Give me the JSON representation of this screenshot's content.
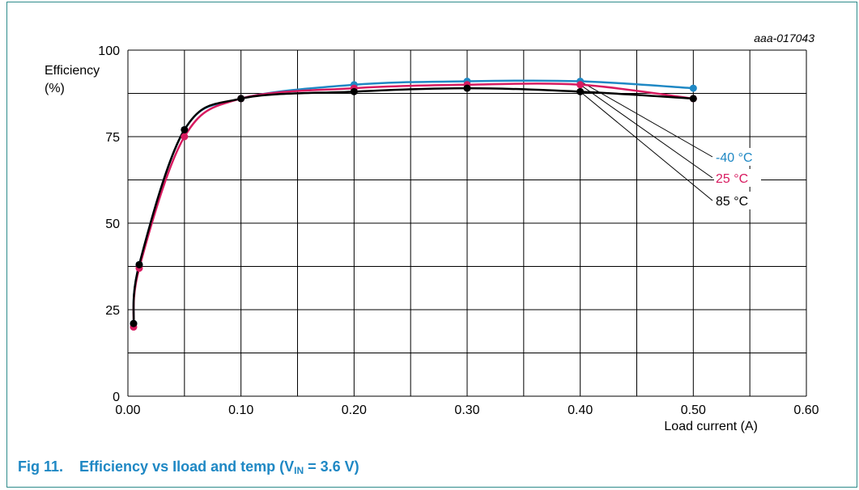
{
  "caption": {
    "fig_label": "Fig 11.",
    "title_main": "Efficiency vs Iload and temp (V",
    "title_sub": "IN",
    "title_tail": " = 3.6 V)"
  },
  "chart_data": {
    "type": "line",
    "doc_id": "aaa-017043",
    "xlabel": "Load current (A)",
    "ylabel_line1": "Efficiency",
    "ylabel_line2": "(%)",
    "xlim": [
      0,
      0.6
    ],
    "ylim": [
      0,
      100
    ],
    "x_ticks": [
      0,
      0.1,
      0.2,
      0.3,
      0.4,
      0.5,
      0.6
    ],
    "x_tick_labels": [
      "0.00",
      "0.10",
      "0.20",
      "0.30",
      "0.40",
      "0.50",
      "0.60"
    ],
    "y_ticks": [
      0,
      25,
      50,
      75,
      100
    ],
    "y_tick_labels": [
      "0",
      "25",
      "50",
      "75",
      "100"
    ],
    "grid": true,
    "series": [
      {
        "name": "-40 °C",
        "color": "#1f88c4",
        "x": [
          0.005,
          0.01,
          0.05,
          0.1,
          0.2,
          0.3,
          0.4,
          0.5
        ],
        "y": [
          21,
          38,
          77,
          86,
          90,
          91,
          91,
          89
        ]
      },
      {
        "name": "25 °C",
        "color": "#d81b60",
        "x": [
          0.005,
          0.01,
          0.05,
          0.1,
          0.2,
          0.3,
          0.4,
          0.5
        ],
        "y": [
          20,
          37,
          75,
          86,
          89,
          90,
          90,
          86
        ]
      },
      {
        "name": "85 °C",
        "color": "#000000",
        "x": [
          0.005,
          0.01,
          0.05,
          0.1,
          0.2,
          0.3,
          0.4,
          0.5
        ],
        "y": [
          21,
          38,
          77,
          86,
          88,
          89,
          88,
          86
        ]
      }
    ]
  }
}
